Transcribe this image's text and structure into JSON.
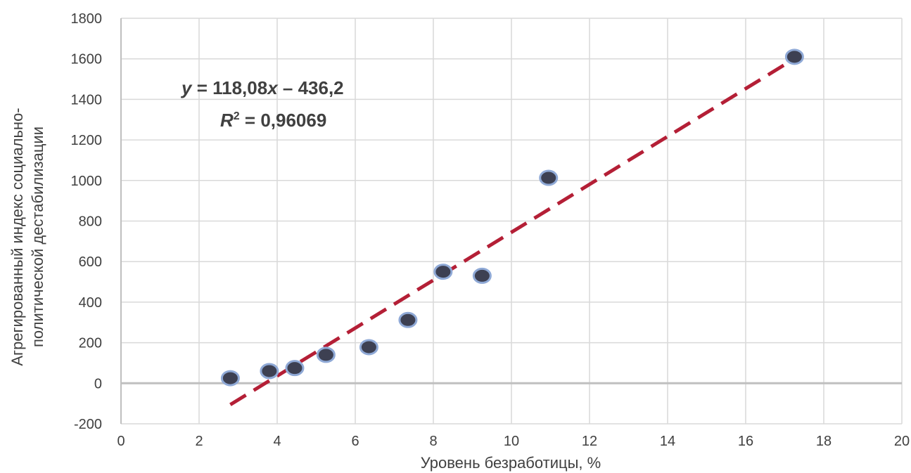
{
  "chart_data": {
    "type": "scatter",
    "title": "",
    "xlabel": "Уровень безработицы, %",
    "ylabel_lines": [
      "Агрегированный индекс социально-",
      "политической дестабилизации"
    ],
    "xlim": [
      0,
      20
    ],
    "ylim": [
      -200,
      1800
    ],
    "x_ticks": [
      0,
      2,
      4,
      6,
      8,
      10,
      12,
      14,
      16,
      18,
      20
    ],
    "y_ticks": [
      -200,
      0,
      200,
      400,
      600,
      800,
      1000,
      1200,
      1400,
      1600,
      1800
    ],
    "grid": true,
    "legend": "none",
    "series": [
      {
        "points": [
          {
            "x": 2.8,
            "y": 25
          },
          {
            "x": 3.8,
            "y": 60
          },
          {
            "x": 4.45,
            "y": 75
          },
          {
            "x": 5.25,
            "y": 140
          },
          {
            "x": 6.35,
            "y": 178
          },
          {
            "x": 7.35,
            "y": 312
          },
          {
            "x": 8.25,
            "y": 550
          },
          {
            "x": 9.25,
            "y": 530
          },
          {
            "x": 10.95,
            "y": 1013
          },
          {
            "x": 17.25,
            "y": 1610
          }
        ],
        "marker_fill": "#3d4052",
        "marker_edge": "#8fa9d6"
      }
    ],
    "trendline": {
      "type": "linear",
      "slope": 118.08,
      "intercept": -436.2,
      "x_range": [
        2.8,
        17.25
      ],
      "color": "#b41f36",
      "style": "dashed",
      "equation_y": "y",
      "equation_rest": " = 118,08",
      "equation_x": "x",
      "equation_tail": "  –  436,2",
      "r2_r": "R",
      "r2_sup": "2",
      "r2_rest": " = 0,96069"
    }
  }
}
